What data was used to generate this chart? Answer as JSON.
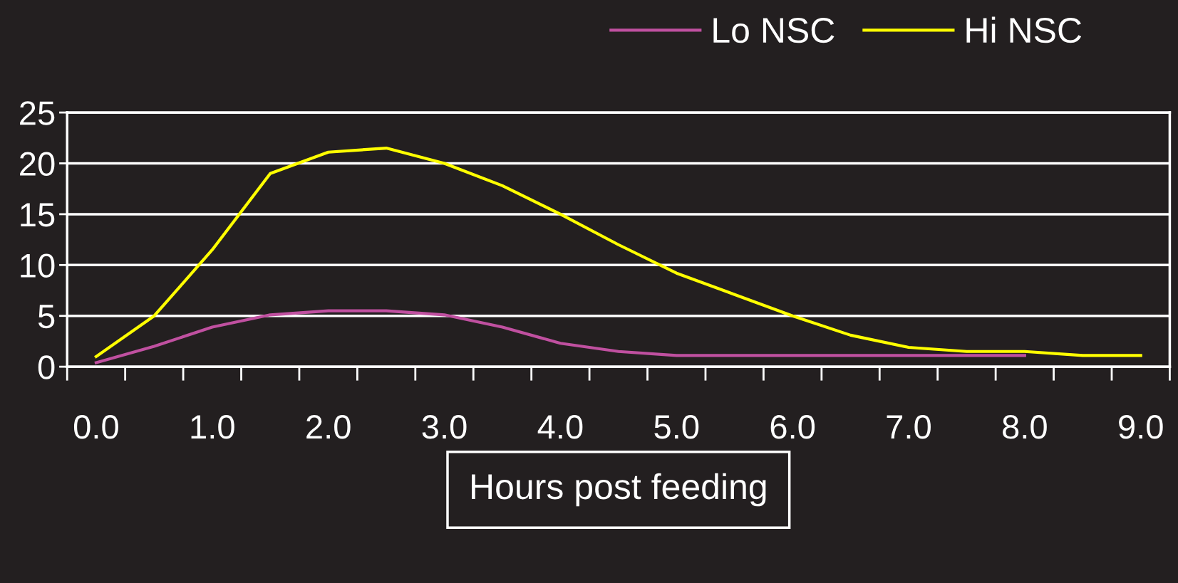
{
  "chart_data": {
    "type": "line",
    "xlabel": "Hours post feeding",
    "categories": [
      "0.0",
      null,
      "1.0",
      null,
      "2.0",
      null,
      "3.0",
      null,
      "4.0",
      null,
      "5.0",
      null,
      "6.0",
      null,
      "7.0",
      null,
      "8.0",
      null,
      "9.0"
    ],
    "series": [
      {
        "name": "Lo NSC",
        "color": "#c050a0",
        "values": [
          0.4,
          2,
          3.9,
          5.1,
          5.5,
          5.5,
          5.1,
          3.9,
          2.3,
          1.5,
          1.1,
          1.1,
          1.1,
          1.1,
          1.1,
          1.1,
          1.1,
          null,
          null
        ]
      },
      {
        "name": "Hi NSC",
        "color": "#ffff00",
        "values": [
          1,
          5,
          11.5,
          19,
          21.1,
          21.5,
          20,
          17.8,
          15,
          12,
          9.2,
          7.1,
          5,
          3.1,
          1.9,
          1.5,
          1.5,
          1.1,
          1.1
        ]
      }
    ],
    "ylim": [
      0,
      25
    ],
    "yticks": [
      0,
      5,
      10,
      15,
      20,
      25
    ],
    "grid": "y",
    "legend": "top right",
    "marker": "none",
    "line_style": "solid"
  }
}
